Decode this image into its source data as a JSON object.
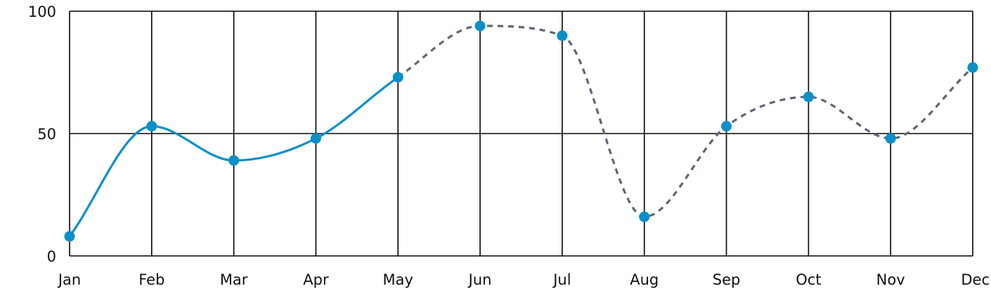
{
  "chart_data": {
    "type": "line",
    "categories": [
      "Jan",
      "Feb",
      "Mar",
      "Apr",
      "May",
      "Jun",
      "Jul",
      "Aug",
      "Sep",
      "Oct",
      "Nov",
      "Dec"
    ],
    "series": [
      {
        "values": [
          8,
          53,
          39,
          48,
          73,
          94,
          90,
          16,
          53,
          65,
          48,
          77
        ],
        "solid_until_index": 4
      }
    ],
    "y_ticks": [
      "0",
      "50",
      "100"
    ],
    "ylim": [
      0,
      100
    ],
    "grid": true,
    "colors": {
      "line": "#0a8fc8",
      "point": "#0a8fc8",
      "dashed": "#5e6676",
      "grid": "#000000"
    }
  }
}
